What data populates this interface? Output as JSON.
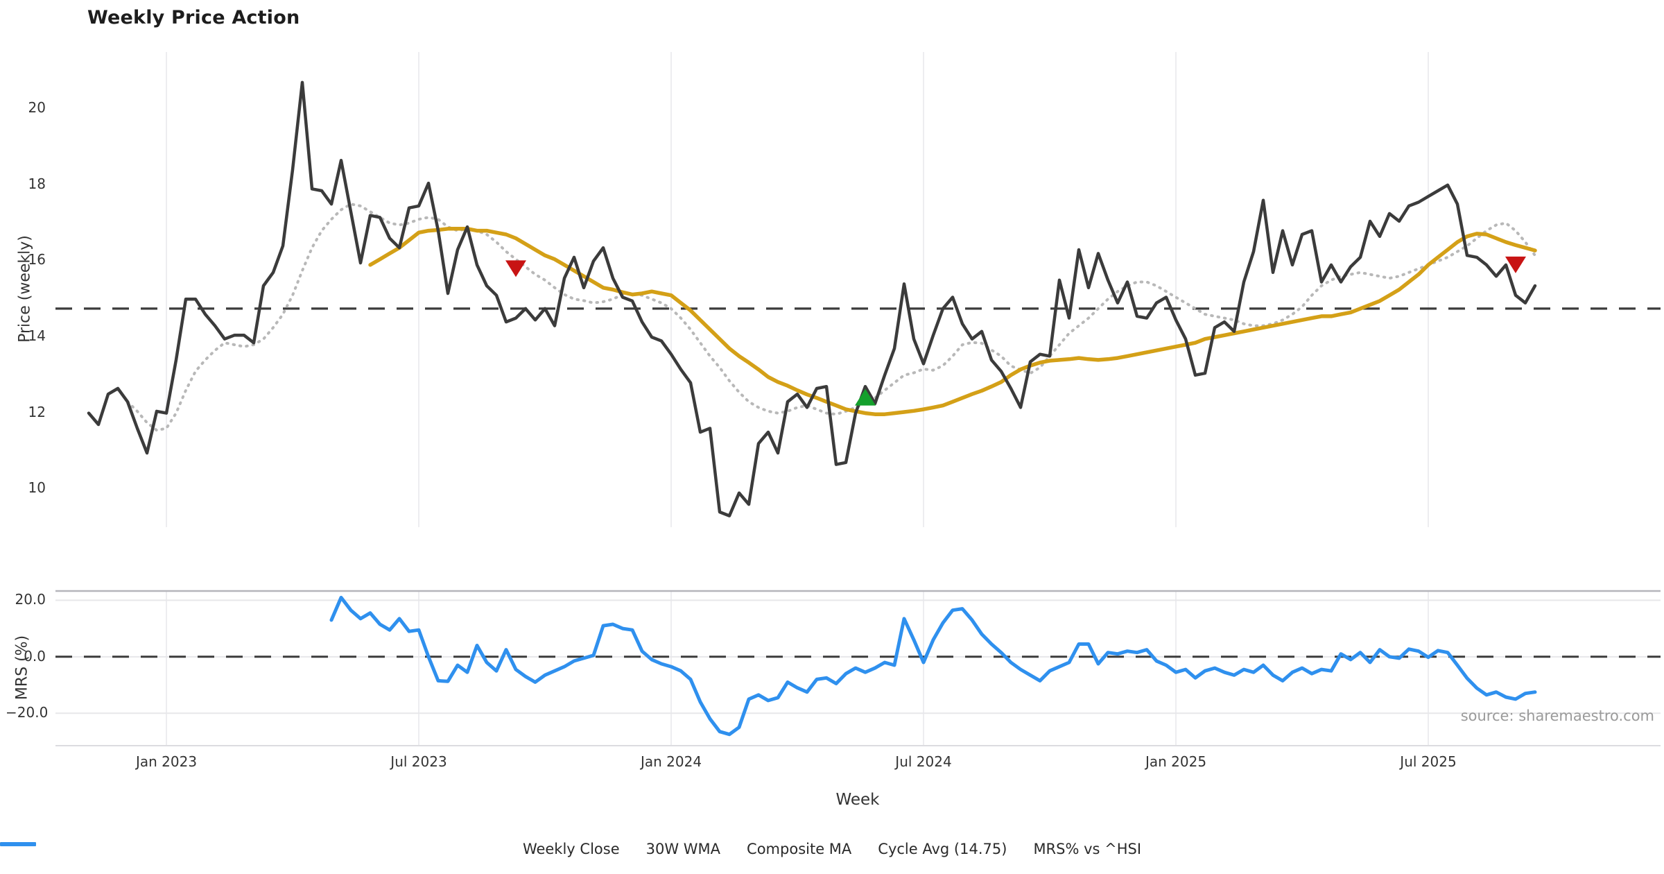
{
  "title": "Weekly Price Action",
  "axes": {
    "price_ylabel": "Price (weekly)",
    "mrs_ylabel": "MRS (%)",
    "xlabel": "Week",
    "source_note": "source: sharemaestro.com"
  },
  "legend": [
    {
      "label": "Weekly Close",
      "style": "solid",
      "color": "#3b3b3b"
    },
    {
      "label": "30W WMA",
      "style": "solid",
      "color": "#d4a017"
    },
    {
      "label": "Composite MA",
      "style": "dotted",
      "color": "#b8b8b8"
    },
    {
      "label": "Cycle Avg (14.75)",
      "style": "dashed",
      "color": "#3b3b3b"
    },
    {
      "label": "MRS% vs ^HSI",
      "style": "solid",
      "color": "#2f90ee"
    }
  ],
  "colors": {
    "close": "#3b3b3b",
    "wma": "#d4a017",
    "composite": "#b8b8b8",
    "cycle_avg": "#3b3b3b",
    "mrs": "#2f90ee",
    "sell_marker": "#c81414",
    "buy_marker": "#14a02c",
    "grid": "#ededf0",
    "mrs_hgrid": "#e7e7ea",
    "mrs_spine": "#b5b5bb"
  },
  "chart_data": {
    "type": "line",
    "title": "Weekly Price Action",
    "x_unit": "weeks",
    "x_tick_indices": [
      8,
      34,
      60,
      86,
      112,
      138
    ],
    "x_tick_labels": [
      "Jan 2023",
      "Jul 2023",
      "Jan 2024",
      "Jul 2024",
      "Jan 2025",
      "Jul 2025"
    ],
    "price_panel": {
      "ylabel": "Price (weekly)",
      "ylim": [
        9.0,
        21.5
      ],
      "yticks": [
        10,
        12,
        14,
        16,
        18,
        20
      ],
      "ytick_labels": [
        "10",
        "12",
        "14",
        "16",
        "18",
        "20"
      ],
      "cycle_avg": 14.75,
      "series": [
        {
          "name": "Weekly Close",
          "style": "solid",
          "color": "#3b3b3b",
          "start_index": 0,
          "values": [
            12.0,
            11.7,
            12.5,
            12.65,
            12.3,
            11.6,
            10.95,
            12.05,
            12.0,
            13.4,
            15.0,
            15.0,
            14.6,
            14.3,
            13.95,
            14.05,
            14.05,
            13.85,
            15.35,
            15.7,
            16.4,
            18.4,
            20.7,
            17.9,
            17.85,
            17.5,
            18.65,
            17.3,
            15.95,
            17.2,
            17.15,
            16.6,
            16.35,
            17.4,
            17.45,
            18.05,
            16.8,
            15.15,
            16.3,
            16.9,
            15.9,
            15.35,
            15.1,
            14.4,
            14.5,
            14.75,
            14.45,
            14.75,
            14.3,
            15.55,
            16.1,
            15.3,
            16.0,
            16.35,
            15.55,
            15.05,
            14.95,
            14.4,
            14.0,
            13.9,
            13.55,
            13.15,
            12.8,
            11.5,
            11.6,
            9.4,
            9.3,
            9.9,
            9.6,
            11.2,
            11.5,
            10.95,
            12.3,
            12.5,
            12.15,
            12.65,
            12.7,
            10.65,
            10.7,
            12.0,
            12.7,
            12.25,
            13.0,
            13.7,
            15.4,
            13.95,
            13.3,
            14.05,
            14.75,
            15.05,
            14.35,
            13.95,
            14.15,
            13.4,
            13.1,
            12.65,
            12.15,
            13.35,
            13.55,
            13.5,
            15.5,
            14.5,
            16.3,
            15.3,
            16.2,
            15.5,
            14.9,
            15.45,
            14.55,
            14.5,
            14.9,
            15.05,
            14.45,
            13.95,
            13.0,
            13.05,
            14.25,
            14.4,
            14.15,
            15.45,
            16.25,
            17.6,
            15.7,
            16.8,
            15.9,
            16.7,
            16.8,
            15.45,
            15.9,
            15.45,
            15.85,
            16.1,
            17.05,
            16.65,
            17.25,
            17.05,
            17.45,
            17.55,
            17.7,
            17.85,
            18.0,
            17.5,
            16.15,
            16.1,
            15.9,
            15.6,
            15.9,
            15.1,
            14.9,
            15.35
          ]
        },
        {
          "name": "30W WMA",
          "style": "solid",
          "color": "#d4a017",
          "start_index": 29,
          "values": [
            15.9,
            16.05,
            16.2,
            16.35,
            16.55,
            16.75,
            16.8,
            16.82,
            16.85,
            16.85,
            16.85,
            16.8,
            16.8,
            16.75,
            16.7,
            16.6,
            16.45,
            16.3,
            16.15,
            16.05,
            15.9,
            15.75,
            15.6,
            15.45,
            15.3,
            15.25,
            15.18,
            15.12,
            15.15,
            15.2,
            15.15,
            15.1,
            14.9,
            14.7,
            14.45,
            14.2,
            13.95,
            13.7,
            13.5,
            13.33,
            13.15,
            12.95,
            12.82,
            12.72,
            12.6,
            12.49,
            12.4,
            12.3,
            12.2,
            12.1,
            12.05,
            12.0,
            11.97,
            11.97,
            12.0,
            12.03,
            12.06,
            12.1,
            12.15,
            12.2,
            12.3,
            12.4,
            12.5,
            12.59,
            12.7,
            12.82,
            13.0,
            13.15,
            13.25,
            13.33,
            13.38,
            13.4,
            13.42,
            13.45,
            13.42,
            13.4,
            13.42,
            13.45,
            13.5,
            13.55,
            13.6,
            13.65,
            13.7,
            13.75,
            13.8,
            13.85,
            13.95,
            14.0,
            14.05,
            14.1,
            14.15,
            14.2,
            14.25,
            14.3,
            14.35,
            14.4,
            14.45,
            14.5,
            14.55,
            14.55,
            14.6,
            14.65,
            14.75,
            14.85,
            14.95,
            15.1,
            15.25,
            15.45,
            15.65,
            15.9,
            16.1,
            16.3,
            16.5,
            16.65,
            16.72,
            16.7,
            16.6,
            16.5,
            16.42,
            16.35,
            16.28
          ]
        },
        {
          "name": "Composite MA",
          "style": "dotted",
          "color": "#b8b8b8",
          "start_index": 4,
          "values": [
            12.3,
            12.05,
            11.75,
            11.55,
            11.6,
            12.0,
            12.6,
            13.1,
            13.4,
            13.65,
            13.85,
            13.8,
            13.75,
            13.8,
            13.95,
            14.25,
            14.6,
            15.1,
            15.75,
            16.35,
            16.8,
            17.1,
            17.35,
            17.5,
            17.45,
            17.3,
            17.15,
            17.0,
            16.95,
            17.0,
            17.1,
            17.15,
            17.1,
            16.9,
            16.8,
            16.85,
            16.8,
            16.7,
            16.5,
            16.25,
            16.05,
            15.85,
            15.65,
            15.5,
            15.3,
            15.12,
            15.0,
            14.96,
            14.9,
            14.93,
            15.0,
            15.12,
            15.15,
            15.1,
            15.0,
            14.9,
            14.75,
            14.5,
            14.2,
            13.85,
            13.5,
            13.2,
            12.85,
            12.55,
            12.3,
            12.15,
            12.05,
            12.0,
            12.05,
            12.15,
            12.2,
            12.1,
            12.0,
            11.97,
            12.05,
            12.15,
            12.26,
            12.4,
            12.6,
            12.8,
            13.0,
            13.06,
            13.16,
            13.13,
            13.25,
            13.5,
            13.8,
            13.86,
            13.84,
            13.66,
            13.5,
            13.24,
            13.14,
            13.05,
            13.2,
            13.5,
            13.8,
            14.1,
            14.3,
            14.5,
            14.75,
            15.0,
            15.2,
            15.35,
            15.45,
            15.45,
            15.35,
            15.2,
            15.05,
            14.9,
            14.75,
            14.6,
            14.55,
            14.5,
            14.45,
            14.35,
            14.3,
            14.3,
            14.35,
            14.45,
            14.6,
            14.8,
            15.1,
            15.35,
            15.5,
            15.6,
            15.65,
            15.7,
            15.65,
            15.6,
            15.55,
            15.6,
            15.7,
            15.8,
            15.9,
            16.0,
            16.1,
            16.25,
            16.4,
            16.6,
            16.8,
            16.95,
            17.0,
            16.8,
            16.5,
            16.15
          ]
        }
      ],
      "markers": [
        {
          "shape": "triangle-down",
          "color": "#c81414",
          "index": 44,
          "value": 15.8,
          "name": "sell-signal-2023"
        },
        {
          "shape": "triangle-up",
          "color": "#14a02c",
          "index": 80,
          "value": 12.42,
          "name": "buy-signal-2024"
        },
        {
          "shape": "triangle-down",
          "color": "#c81414",
          "index": 147,
          "value": 15.9,
          "name": "sell-signal-2025"
        }
      ]
    },
    "mrs_panel": {
      "ylabel": "MRS (%)",
      "ylim": [
        -31.5,
        23.3
      ],
      "yticks": [
        20.0,
        0.0,
        -20.0
      ],
      "ytick_labels": [
        "20.0",
        "0.0",
        "−20.0"
      ],
      "zero_line": 0.0,
      "series": [
        {
          "name": "MRS% vs ^HSI",
          "style": "solid",
          "color": "#2f90ee",
          "start_index": 25,
          "values": [
            13,
            21,
            16.5,
            13.5,
            15.5,
            11.5,
            9.5,
            13.5,
            9,
            9.5,
            0,
            -8.5,
            -8.7,
            -3,
            -5.5,
            4,
            -2,
            -5,
            2.5,
            -4.5,
            -7,
            -9,
            -6.5,
            -5,
            -3.5,
            -1.5,
            -0.5,
            0.5,
            11,
            11.5,
            10,
            9.5,
            2,
            -1,
            -2.5,
            -3.5,
            -5,
            -8,
            -16,
            -22,
            -26.5,
            -27.5,
            -25,
            -15,
            -13.5,
            -15.5,
            -14.5,
            -9,
            -11,
            -12.5,
            -8,
            -7.5,
            -9.5,
            -6,
            -4,
            -5.5,
            -4,
            -2,
            -3,
            13.5,
            6,
            -2,
            6,
            12,
            16.5,
            17,
            13,
            8,
            4.5,
            1.5,
            -2,
            -4.5,
            -6.5,
            -8.5,
            -5,
            -3.5,
            -2,
            4.5,
            4.5,
            -2.5,
            1.5,
            1,
            2,
            1.5,
            2.5,
            -1.5,
            -3,
            -5.5,
            -4.5,
            -7.5,
            -5,
            -4,
            -5.5,
            -6.5,
            -4.5,
            -5.5,
            -3,
            -6.5,
            -8.5,
            -5.5,
            -4,
            -6,
            -4.5,
            -5,
            1,
            -1,
            1.5,
            -2,
            2.5,
            0,
            -0.5,
            2.7,
            2,
            -0.2,
            2.2,
            1.5,
            -3,
            -7.6,
            -11.1,
            -13.5,
            -12.5,
            -14.3,
            -15,
            -13,
            -12.5
          ]
        }
      ]
    }
  }
}
